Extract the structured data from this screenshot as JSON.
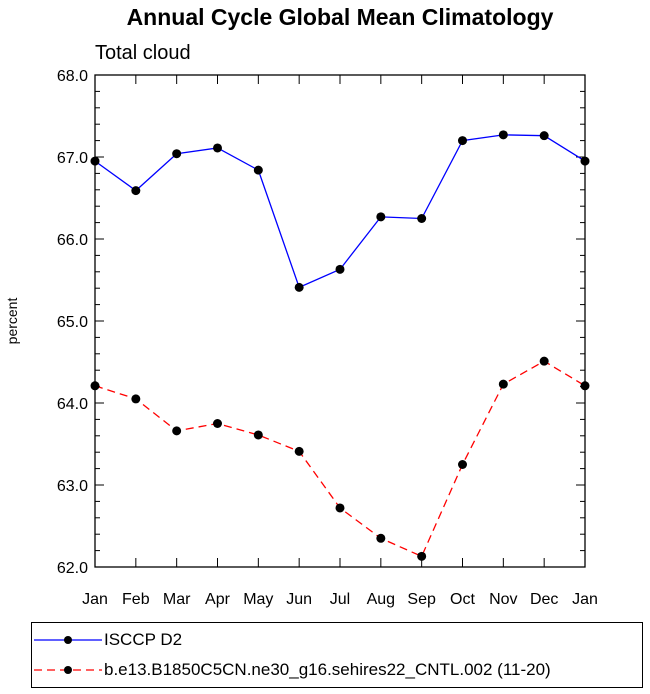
{
  "chart_data": {
    "type": "line",
    "title": "Annual Cycle Global Mean Climatology",
    "subtitle": "Total cloud",
    "xlabel": "",
    "ylabel": "percent",
    "categories": [
      "Jan",
      "Feb",
      "Mar",
      "Apr",
      "May",
      "Jun",
      "Jul",
      "Aug",
      "Sep",
      "Oct",
      "Nov",
      "Dec",
      "Jan"
    ],
    "ylim": [
      62.0,
      68.0
    ],
    "yticks": [
      "62.0",
      "63.0",
      "64.0",
      "65.0",
      "66.0",
      "67.0",
      "68.0"
    ],
    "grid": false,
    "legend_position": "bottom",
    "series": [
      {
        "name": "ISCCP D2",
        "color": "#0000ff",
        "dash": "solid",
        "values": [
          66.95,
          66.59,
          67.04,
          67.11,
          66.84,
          65.41,
          65.63,
          66.27,
          66.25,
          67.2,
          67.27,
          67.26,
          66.95
        ]
      },
      {
        "name": "b.e13.B1850C5CN.ne30_g16.sehires22_CNTL.002 (11-20)",
        "color": "#ff0000",
        "dash": "dashed",
        "values": [
          64.21,
          64.05,
          63.66,
          63.75,
          63.61,
          63.41,
          62.72,
          62.35,
          62.13,
          63.25,
          64.23,
          64.51,
          64.21
        ]
      }
    ]
  }
}
